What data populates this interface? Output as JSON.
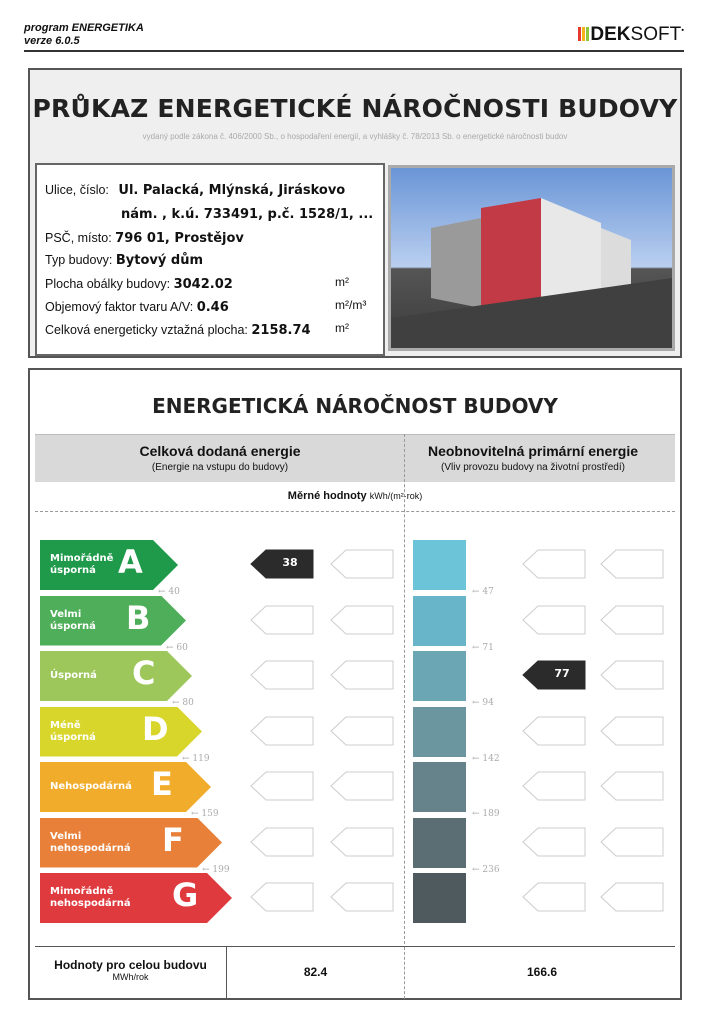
{
  "header": {
    "program": "program ENERGETIKA",
    "version": "verze 6.0.5",
    "logo_bold": "DEK",
    "logo_light": "SOFT",
    "logo_colors": [
      "#e63a2e",
      "#f5b21a",
      "#8dc63f"
    ]
  },
  "certificate": {
    "title": "PRŮKAZ ENERGETICKÉ NÁROČNOSTI BUDOVY",
    "subtitle": "vydaný podle zákona č. 406/2000 Sb., o hospodaření energií, a vyhlášky č. 78/2013 Sb. o energetické náročnosti budov"
  },
  "building": {
    "street_label": "Ulice, číslo:",
    "street_line1": "Ul. Palacká, Mlýnská, Jiráskovo",
    "street_line2": "nám. , k.ú. 733491, p.č. 1528/1, ...",
    "city_label": "PSČ, místo:",
    "city": "796 01, Prostějov",
    "type_label": "Typ budovy:",
    "type": "Bytový dům",
    "envelope_label": "Plocha obálky budovy:",
    "envelope": "3042.02",
    "envelope_unit": "m²",
    "shape_label": "Objemový faktor tvaru A/V:",
    "shape": "0.46",
    "shape_unit": "m²/m³",
    "area_label": "Celková energeticky vztažná plocha:",
    "area": "2158.74",
    "area_unit": "m²"
  },
  "rating": {
    "title": "ENERGETICKÁ NÁROČNOST BUDOVY",
    "left_title": "Celková dodaná energie",
    "left_sub": "(Energie na vstupu do budovy)",
    "right_title": "Neobnovitelná primární energie",
    "right_sub": "(Vliv provozu budovy na životní prostředí)",
    "specific_label": "Měrné hodnoty",
    "specific_unit": "kWh/(m²·rok)",
    "classes": [
      {
        "letter": "A",
        "name": "Mimořádně úsporná",
        "color": "#1e9a4a"
      },
      {
        "letter": "B",
        "name": "Velmi úsporná",
        "color": "#4fae5a"
      },
      {
        "letter": "C",
        "name": "Úsporná",
        "color": "#9dc75a"
      },
      {
        "letter": "D",
        "name": "Méně úsporná",
        "color": "#d8d62a"
      },
      {
        "letter": "E",
        "name": "Nehospodárná",
        "color": "#f2ac2c"
      },
      {
        "letter": "F",
        "name": "Velmi nehospodárná",
        "color": "#e8803a"
      },
      {
        "letter": "G",
        "name": "Mimořádně nehospodárná",
        "color": "#df3a3e"
      }
    ],
    "left_thresholds": [
      "40",
      "60",
      "80",
      "119",
      "159",
      "199"
    ],
    "right_thresholds": [
      "47",
      "71",
      "94",
      "142",
      "189",
      "236"
    ],
    "right_colors": [
      "#6cc4d8",
      "#68b4c8",
      "#6aa6b4",
      "#6b96a0",
      "#66828a",
      "#5a6e74",
      "#4e5a5e"
    ],
    "left_value": "38",
    "left_value_class": "A",
    "right_value": "77",
    "right_value_class": "C",
    "total_label": "Hodnoty pro celou budovu",
    "total_unit": "MWh/rok",
    "total_left": "82.4",
    "total_right": "166.6"
  }
}
